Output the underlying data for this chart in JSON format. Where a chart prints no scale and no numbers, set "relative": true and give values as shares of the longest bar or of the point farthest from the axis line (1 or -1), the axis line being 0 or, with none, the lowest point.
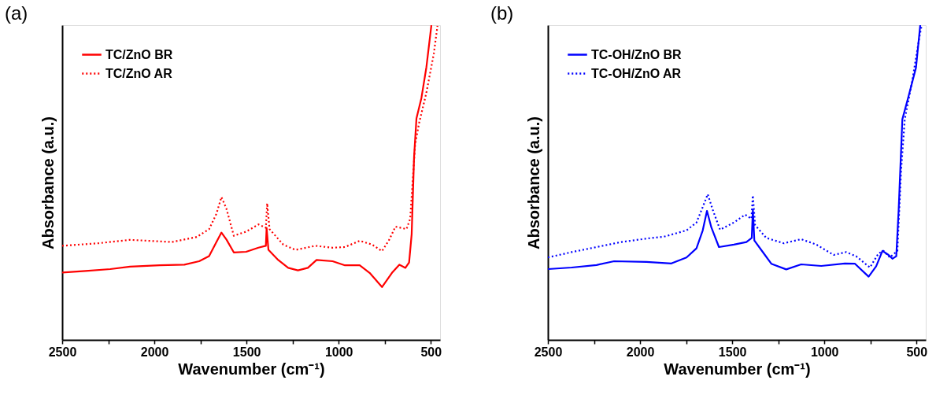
{
  "chart_data": [
    {
      "type": "line",
      "title": "(a)",
      "xlabel": "Wavenumber (cm⁻¹)",
      "ylabel": "Absorbance (a.u.)",
      "relative": true,
      "legend": "top left",
      "grid": false,
      "xlim": [
        2500,
        450
      ],
      "xticks": [
        2500,
        {
          "value": 2250,
          "label": null
        },
        2000,
        {
          "value": 1750,
          "label": null
        },
        1500,
        {
          "value": 1250,
          "label": null
        },
        1000,
        {
          "value": 750,
          "label": null
        },
        500
      ],
      "series": [
        {
          "name": "TC/ZnO BR",
          "color": "#ff0000",
          "line_style": "solid",
          "x": [
            2500,
            2373,
            2239,
            2132,
            1971,
            1837,
            1757,
            1703,
            1663,
            1636,
            1609,
            1569,
            1502,
            1435,
            1395,
            1391,
            1381,
            1328,
            1274,
            1221,
            1167,
            1120,
            1033,
            966,
            886,
            832,
            765,
            711,
            671,
            638,
            618,
            604,
            591,
            578,
            551,
            524,
            497
          ],
          "values": [
            0.214,
            0.219,
            0.225,
            0.233,
            0.237,
            0.239,
            0.25,
            0.266,
            0.311,
            0.341,
            0.319,
            0.278,
            0.28,
            0.293,
            0.299,
            0.356,
            0.286,
            0.254,
            0.229,
            0.221,
            0.229,
            0.254,
            0.25,
            0.237,
            0.237,
            0.213,
            0.168,
            0.213,
            0.239,
            0.229,
            0.246,
            0.336,
            0.581,
            0.704,
            0.769,
            0.867,
            1.0
          ]
        },
        {
          "name": "TC/ZnO AR",
          "color": "#ff0000",
          "line_style": "dotted",
          "x": [
            2500,
            2306,
            2132,
            1904,
            1770,
            1703,
            1663,
            1636,
            1609,
            1569,
            1502,
            1435,
            1395,
            1388,
            1375,
            1301,
            1234,
            1127,
            1033,
            966,
            886,
            819,
            765,
            725,
            692,
            632,
            612,
            585,
            564,
            524,
            484,
            464
          ],
          "values": [
            0.299,
            0.307,
            0.318,
            0.311,
            0.327,
            0.352,
            0.401,
            0.454,
            0.417,
            0.331,
            0.344,
            0.367,
            0.356,
            0.434,
            0.352,
            0.303,
            0.286,
            0.299,
            0.293,
            0.295,
            0.315,
            0.303,
            0.282,
            0.319,
            0.36,
            0.352,
            0.385,
            0.622,
            0.688,
            0.786,
            0.909,
            0.998
          ]
        }
      ]
    },
    {
      "type": "line",
      "title": "(b)",
      "xlabel": "Wavenumber (cm⁻¹)",
      "ylabel": "Absorbance (a.u.)",
      "relative": true,
      "legend": "top left",
      "grid": false,
      "xlim": [
        2500,
        450
      ],
      "xticks": [
        2500,
        {
          "value": 2250,
          "label": null
        },
        2000,
        {
          "value": 1750,
          "label": null
        },
        1500,
        {
          "value": 1250,
          "label": null
        },
        1000,
        {
          "value": 750,
          "label": null
        },
        500
      ],
      "series": [
        {
          "name": "TC-OH/ZnO BR",
          "color": "#0000ff",
          "line_style": "solid",
          "x": [
            2500,
            2371,
            2236,
            2141,
            1965,
            1830,
            1748,
            1694,
            1660,
            1637,
            1613,
            1572,
            1491,
            1423,
            1394,
            1388,
            1380,
            1329,
            1288,
            1207,
            1126,
            1017,
            889,
            834,
            760,
            719,
            685,
            652,
            631,
            610,
            597,
            577,
            543,
            503,
            480
          ],
          "values": [
            0.225,
            0.23,
            0.238,
            0.25,
            0.248,
            0.243,
            0.262,
            0.291,
            0.348,
            0.41,
            0.357,
            0.295,
            0.303,
            0.311,
            0.324,
            0.414,
            0.316,
            0.275,
            0.242,
            0.224,
            0.24,
            0.235,
            0.243,
            0.242,
            0.201,
            0.234,
            0.283,
            0.27,
            0.258,
            0.266,
            0.414,
            0.701,
            0.775,
            0.865,
            1.0
          ]
        },
        {
          "name": "TC-OH/ZnO AR",
          "color": "#0000ff",
          "line_style": "dotted",
          "x": [
            2500,
            2371,
            2236,
            2101,
            1965,
            1870,
            1748,
            1694,
            1660,
            1633,
            1606,
            1566,
            1491,
            1430,
            1396,
            1388,
            1376,
            1315,
            1220,
            1126,
            1044,
            950,
            882,
            828,
            753,
            706,
            679,
            645,
            604,
            584,
            564,
            523,
            482,
            472
          ],
          "values": [
            0.262,
            0.279,
            0.295,
            0.311,
            0.322,
            0.328,
            0.348,
            0.373,
            0.422,
            0.463,
            0.414,
            0.35,
            0.373,
            0.398,
            0.385,
            0.459,
            0.365,
            0.324,
            0.307,
            0.32,
            0.303,
            0.27,
            0.279,
            0.266,
            0.23,
            0.275,
            0.283,
            0.262,
            0.283,
            0.537,
            0.701,
            0.824,
            0.971,
            1.0
          ]
        }
      ]
    }
  ]
}
